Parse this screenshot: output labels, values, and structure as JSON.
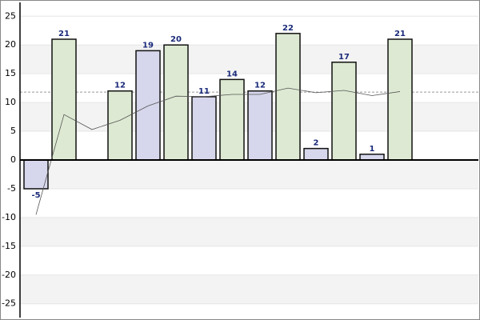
{
  "chart_data": {
    "type": "bar",
    "values": [
      -5,
      21,
      null,
      12,
      19,
      20,
      11,
      14,
      12,
      22,
      2,
      17,
      1,
      21
    ],
    "colors": [
      "#d6d6ec",
      "#dde9d2",
      null,
      "#dde9d2",
      "#d6d6ec",
      "#dde9d2",
      "#d6d6ec",
      "#dde9d2",
      "#d6d6ec",
      "#dde9d2",
      "#d6d6ec",
      "#dde9d2",
      "#d6d6ec",
      "#dde9d2"
    ],
    "trend": {
      "color": "#555555",
      "values": [
        -9.5,
        7.9,
        5.3,
        6.9,
        9.4,
        11.1,
        11,
        11.4,
        11.4,
        12.5,
        11.7,
        12.1,
        11.2,
        11.9
      ]
    },
    "reference_line": 11.8,
    "ylim": [
      -27.4,
      27.4
    ],
    "yticks": [
      -25,
      -20,
      -15,
      -10,
      -5,
      0,
      5,
      10,
      15,
      20,
      25
    ],
    "grid": true
  }
}
